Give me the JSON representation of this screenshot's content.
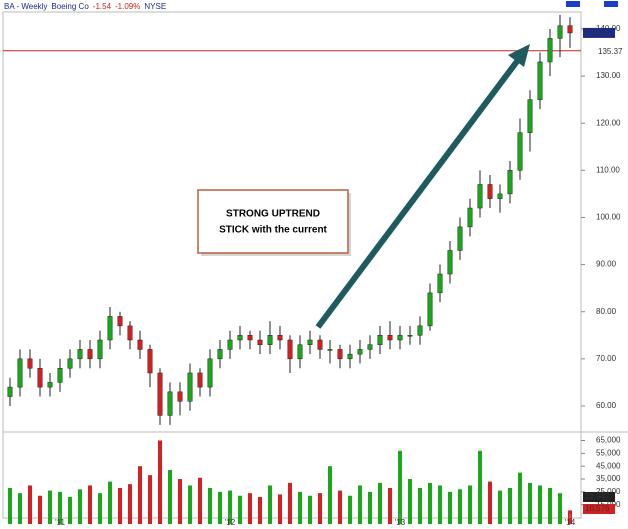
{
  "chart_data": {
    "type": "candlestick",
    "symbol": "BA - Weekly",
    "company": "Boeing Co",
    "change": "-1.54",
    "change_pct": "-1.09%",
    "exchange": "NYSE",
    "annotation": [
      "STRONG UPTREND",
      "STICK with the current"
    ],
    "categories": [
      null,
      null,
      null,
      null,
      null,
      "'11",
      null,
      null,
      null,
      null,
      null,
      null,
      null,
      null,
      null,
      null,
      null,
      null,
      null,
      null,
      null,
      null,
      "'12",
      null,
      null,
      null,
      null,
      null,
      null,
      null,
      null,
      null,
      null,
      null,
      null,
      null,
      null,
      null,
      null,
      "'13",
      null,
      null,
      null,
      null,
      null,
      null,
      null,
      null,
      null,
      null,
      null,
      null,
      null,
      null,
      null,
      null,
      "'14"
    ],
    "open": [
      62,
      64,
      70,
      68,
      64,
      65,
      68,
      70,
      72,
      70,
      74,
      79,
      77,
      74,
      72,
      67,
      58,
      63,
      61,
      67,
      64,
      70,
      72,
      74,
      75,
      74,
      73,
      75,
      74,
      70,
      73,
      74,
      72,
      72,
      70,
      71,
      72,
      73,
      75,
      74,
      75,
      75,
      77,
      84,
      88,
      93,
      98,
      102,
      107,
      104,
      105,
      110,
      118,
      125,
      133,
      138,
      140.7
    ],
    "high": [
      66,
      72,
      72,
      70,
      67,
      70,
      72,
      74,
      74,
      76,
      81,
      80,
      78,
      76,
      73,
      68,
      65,
      65,
      69,
      68,
      72,
      74,
      76,
      77,
      76,
      76,
      78,
      77,
      75,
      75,
      76,
      75,
      74,
      73,
      73,
      74,
      75,
      77,
      78,
      77,
      77,
      79,
      86,
      90,
      95,
      100,
      104,
      110,
      109,
      107,
      112,
      121,
      127,
      135,
      140,
      143,
      142.5
    ],
    "low": [
      60,
      62,
      66,
      62,
      62,
      63,
      66,
      68,
      68,
      68,
      72,
      75,
      72,
      70,
      64,
      56,
      56,
      58,
      59,
      62,
      62,
      68,
      70,
      72,
      72,
      71,
      71,
      72,
      67,
      68,
      71,
      70,
      69,
      68,
      68,
      69,
      70,
      71,
      72,
      72,
      73,
      73,
      76,
      82,
      86,
      91,
      96,
      100,
      102,
      101,
      103,
      108,
      114,
      123,
      130,
      134,
      136
    ],
    "close": [
      64,
      70,
      68,
      64,
      65,
      68,
      70,
      72,
      70,
      74,
      79,
      77,
      74,
      72,
      67,
      58,
      63,
      61,
      67,
      64,
      70,
      72,
      74,
      75,
      74,
      73,
      75,
      74,
      70,
      73,
      74,
      72,
      72,
      70,
      71,
      72,
      73,
      75,
      74,
      75,
      75,
      77,
      84,
      88,
      93,
      98,
      102,
      107,
      104,
      105,
      110,
      118,
      125,
      133,
      138,
      140.7,
      139.16
    ],
    "volume": [
      28000,
      24000,
      30000,
      22000,
      26000,
      25000,
      21000,
      27000,
      30000,
      24000,
      33000,
      28000,
      31000,
      45000,
      38000,
      65000,
      42000,
      35000,
      30000,
      36000,
      28000,
      25000,
      26000,
      22000,
      24000,
      21000,
      30000,
      23000,
      32000,
      25000,
      22000,
      24000,
      45000,
      26000,
      22000,
      30000,
      25000,
      32000,
      28000,
      57000,
      35000,
      28000,
      32000,
      30000,
      25000,
      27000,
      30000,
      57000,
      33000,
      26000,
      28000,
      40000,
      32000,
      30000,
      28000,
      24000,
      10576
    ],
    "volume_last_label": "10,576",
    "volume_average_label": "22,947",
    "up_color": "#1aa81a",
    "down_color": "#d42020",
    "reference_line": 135.37,
    "ylim": [
      54.9,
      143.6
    ],
    "yticks": [
      {
        "value": 60,
        "label": "60.00"
      },
      {
        "value": 70,
        "label": "70.00"
      },
      {
        "value": 80,
        "label": "80.00"
      },
      {
        "value": 90,
        "label": "90.00"
      },
      {
        "value": 100,
        "label": "100.00"
      },
      {
        "value": 110,
        "label": "110.00"
      },
      {
        "value": 120,
        "label": "120.00"
      },
      {
        "value": 130,
        "label": "130.00"
      },
      {
        "value": 140,
        "label": "140.00"
      }
    ],
    "y2lim": [
      0,
      68500
    ],
    "y2ticks": [
      {
        "value": 65000,
        "label": "65,000"
      },
      {
        "value": 55000,
        "label": "55,000"
      },
      {
        "value": 45000,
        "label": "45,000"
      },
      {
        "value": 35000,
        "label": "35,000"
      },
      {
        "value": 25000,
        "label": "25,000"
      },
      {
        "value": 15000,
        "label": "15,000"
      }
    ]
  }
}
